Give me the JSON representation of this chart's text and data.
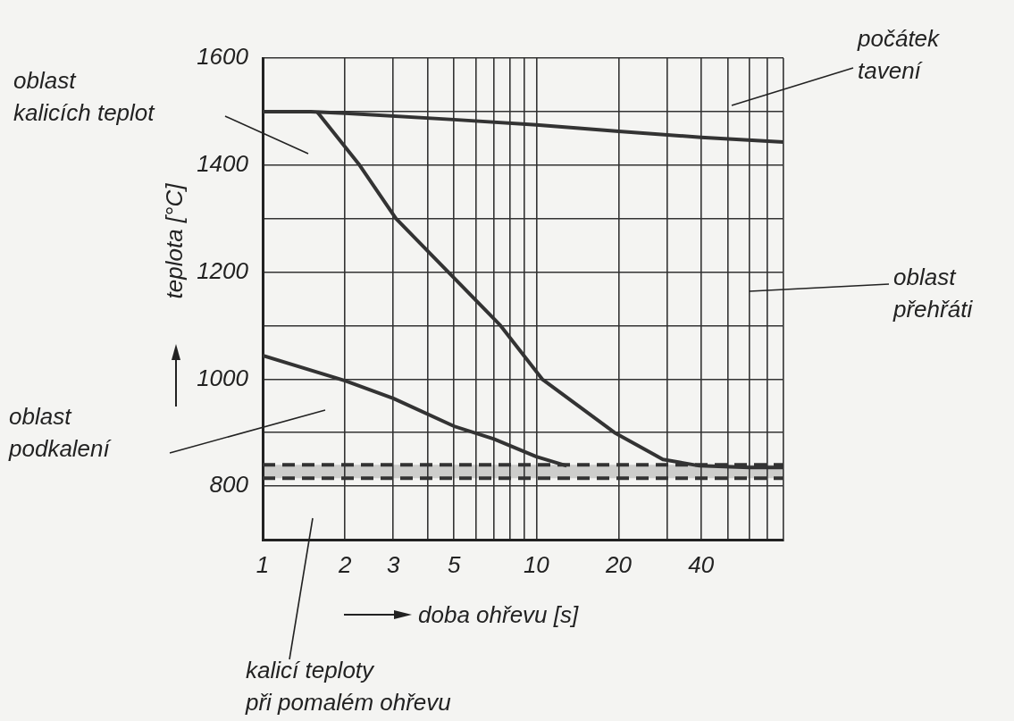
{
  "chart_data": {
    "type": "line",
    "xlabel": "doba ohřevu [s]",
    "ylabel": "teplota [°C]",
    "log": "x",
    "xlim": [
      1,
      80
    ],
    "xticks": [
      1,
      2,
      3,
      {
        "value": 4,
        "label": null
      },
      5,
      {
        "value": 6,
        "label": null
      },
      {
        "value": 7,
        "label": null
      },
      {
        "value": 8,
        "label": null
      },
      {
        "value": 9,
        "label": null
      },
      10,
      20,
      {
        "value": 30,
        "label": null
      },
      40,
      {
        "value": 50,
        "label": null
      },
      {
        "value": 60,
        "label": null
      },
      {
        "value": 70,
        "label": null
      },
      {
        "value": 80,
        "label": null
      }
    ],
    "ylim": [
      700,
      1600
    ],
    "yticks": [
      800,
      {
        "value": 900,
        "label": null
      },
      1000,
      {
        "value": 1100,
        "label": null
      },
      1200,
      {
        "value": 1300,
        "label": null
      },
      1400,
      {
        "value": 1500,
        "label": null
      },
      1600
    ],
    "grid": true,
    "legend": false,
    "marker": "none",
    "line_style": "solid",
    "series": [
      {
        "color": "#333333",
        "x": [
          1,
          1.5,
          2,
          5,
          10,
          20,
          40,
          80
        ],
        "values": [
          1500,
          1500,
          1497,
          1485,
          1475,
          1463,
          1452,
          1443
        ]
      },
      {
        "color": "#333333",
        "x": [
          1.58,
          2.26,
          3.07,
          4.77,
          7.4,
          10.5,
          19.3,
          29,
          39.5,
          60,
          80
        ],
        "values": [
          1500,
          1400,
          1300,
          1200,
          1100,
          1000,
          900,
          850,
          838,
          835,
          835
        ]
      },
      {
        "color": "#333333",
        "x": [
          1,
          2,
          3,
          5,
          7,
          10,
          12.9
        ],
        "values": [
          1044,
          997,
          964,
          912,
          888,
          855,
          838
        ]
      }
    ],
    "ref_lines": [
      {
        "axis": "y",
        "value": 840,
        "color": "#333333",
        "line_style": "dashed"
      },
      {
        "axis": "y",
        "value": 815,
        "color": "#333333",
        "line_style": "dashed"
      }
    ],
    "bands": [
      {
        "axis": "y",
        "from": 815,
        "to": 840,
        "color": "#333333"
      }
    ],
    "annotations": [
      "oblast\nkalicích teplot",
      "počátek\ntavení",
      "oblast\npřehřáti",
      "oblast\npodkalení",
      "kalicí teploty\npři pomalém ohřevu"
    ]
  }
}
